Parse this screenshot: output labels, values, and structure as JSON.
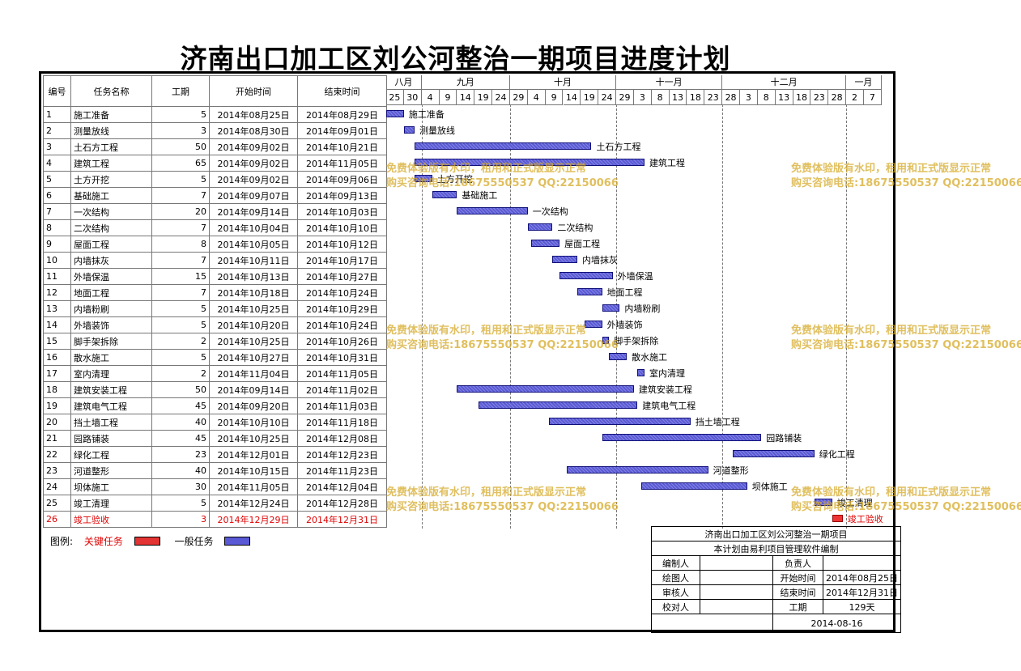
{
  "title": "济南出口加工区刘公河整治一期项目进度计划",
  "columns": [
    "编号",
    "任务名称",
    "工期",
    "开始时间",
    "结束时间"
  ],
  "months": [
    {
      "label": "八月",
      "days": [
        "25",
        "30"
      ]
    },
    {
      "label": "九月",
      "days": [
        "4",
        "9",
        "14",
        "19",
        "24"
      ]
    },
    {
      "label": "十月",
      "days": [
        "29",
        "4",
        "9",
        "14",
        "19",
        "24"
      ]
    },
    {
      "label": "十一月",
      "days": [
        "29",
        "3",
        "8",
        "13",
        "18",
        "23"
      ]
    },
    {
      "label": "十二月",
      "days": [
        "28",
        "3",
        "8",
        "13",
        "18",
        "23",
        "28"
      ]
    },
    {
      "label": "一月",
      "days": [
        "2",
        "7"
      ]
    }
  ],
  "colors": {
    "normal": "#5a5ad6",
    "critical": "#e33333",
    "critical_text": "#e00000",
    "watermark": "#d6aa28"
  },
  "chart_data": {
    "type": "gantt",
    "date_range": [
      "2014-08-25",
      "2015-01-11"
    ],
    "tasks": [
      {
        "id": "1",
        "name": "施工准备",
        "duration": "5",
        "start": "2014年08月25日",
        "end": "2014年08月29日",
        "s": "2014-08-25",
        "e": "2014-08-29",
        "critical": false
      },
      {
        "id": "2",
        "name": "测量放线",
        "duration": "3",
        "start": "2014年08月30日",
        "end": "2014年09月01日",
        "s": "2014-08-30",
        "e": "2014-09-01",
        "critical": false
      },
      {
        "id": "3",
        "name": "土石方工程",
        "duration": "50",
        "start": "2014年09月02日",
        "end": "2014年10月21日",
        "s": "2014-09-02",
        "e": "2014-10-21",
        "critical": false
      },
      {
        "id": "4",
        "name": "建筑工程",
        "duration": "65",
        "start": "2014年09月02日",
        "end": "2014年11月05日",
        "s": "2014-09-02",
        "e": "2014-11-05",
        "critical": false
      },
      {
        "id": "5",
        "name": "土方开挖",
        "duration": "5",
        "start": "2014年09月02日",
        "end": "2014年09月06日",
        "s": "2014-09-02",
        "e": "2014-09-06",
        "critical": false
      },
      {
        "id": "6",
        "name": "基础施工",
        "duration": "7",
        "start": "2014年09月07日",
        "end": "2014年09月13日",
        "s": "2014-09-07",
        "e": "2014-09-13",
        "critical": false
      },
      {
        "id": "7",
        "name": "一次结构",
        "duration": "20",
        "start": "2014年09月14日",
        "end": "2014年10月03日",
        "s": "2014-09-14",
        "e": "2014-10-03",
        "critical": false
      },
      {
        "id": "8",
        "name": "二次结构",
        "duration": "7",
        "start": "2014年10月04日",
        "end": "2014年10月10日",
        "s": "2014-10-04",
        "e": "2014-10-10",
        "critical": false
      },
      {
        "id": "9",
        "name": "屋面工程",
        "duration": "8",
        "start": "2014年10月05日",
        "end": "2014年10月12日",
        "s": "2014-10-05",
        "e": "2014-10-12",
        "critical": false
      },
      {
        "id": "10",
        "name": "内墙抹灰",
        "duration": "7",
        "start": "2014年10月11日",
        "end": "2014年10月17日",
        "s": "2014-10-11",
        "e": "2014-10-17",
        "critical": false
      },
      {
        "id": "11",
        "name": "外墙保温",
        "duration": "15",
        "start": "2014年10月13日",
        "end": "2014年10月27日",
        "s": "2014-10-13",
        "e": "2014-10-27",
        "critical": false
      },
      {
        "id": "12",
        "name": "地面工程",
        "duration": "7",
        "start": "2014年10月18日",
        "end": "2014年10月24日",
        "s": "2014-10-18",
        "e": "2014-10-24",
        "critical": false
      },
      {
        "id": "13",
        "name": "内墙粉刷",
        "duration": "5",
        "start": "2014年10月25日",
        "end": "2014年10月29日",
        "s": "2014-10-25",
        "e": "2014-10-29",
        "critical": false
      },
      {
        "id": "14",
        "name": "外墙装饰",
        "duration": "5",
        "start": "2014年10月20日",
        "end": "2014年10月24日",
        "s": "2014-10-20",
        "e": "2014-10-24",
        "critical": false
      },
      {
        "id": "15",
        "name": "脚手架拆除",
        "duration": "2",
        "start": "2014年10月25日",
        "end": "2014年10月26日",
        "s": "2014-10-25",
        "e": "2014-10-26",
        "critical": false
      },
      {
        "id": "16",
        "name": "散水施工",
        "duration": "5",
        "start": "2014年10月27日",
        "end": "2014年10月31日",
        "s": "2014-10-27",
        "e": "2014-10-31",
        "critical": false
      },
      {
        "id": "17",
        "name": "室内清理",
        "duration": "2",
        "start": "2014年11月04日",
        "end": "2014年11月05日",
        "s": "2014-11-04",
        "e": "2014-11-05",
        "critical": false
      },
      {
        "id": "18",
        "name": "建筑安装工程",
        "duration": "50",
        "start": "2014年09月14日",
        "end": "2014年11月02日",
        "s": "2014-09-14",
        "e": "2014-11-02",
        "critical": false
      },
      {
        "id": "19",
        "name": "建筑电气工程",
        "duration": "45",
        "start": "2014年09月20日",
        "end": "2014年11月03日",
        "s": "2014-09-20",
        "e": "2014-11-03",
        "critical": false
      },
      {
        "id": "20",
        "name": "挡土墙工程",
        "duration": "40",
        "start": "2014年10月10日",
        "end": "2014年11月18日",
        "s": "2014-10-10",
        "e": "2014-11-18",
        "critical": false
      },
      {
        "id": "21",
        "name": "园路铺装",
        "duration": "45",
        "start": "2014年10月25日",
        "end": "2014年12月08日",
        "s": "2014-10-25",
        "e": "2014-12-08",
        "critical": false
      },
      {
        "id": "22",
        "name": "绿化工程",
        "duration": "23",
        "start": "2014年12月01日",
        "end": "2014年12月23日",
        "s": "2014-12-01",
        "e": "2014-12-23",
        "critical": false
      },
      {
        "id": "23",
        "name": "河道整形",
        "duration": "40",
        "start": "2014年10月15日",
        "end": "2014年11月23日",
        "s": "2014-10-15",
        "e": "2014-11-23",
        "critical": false
      },
      {
        "id": "24",
        "name": "坝体施工",
        "duration": "30",
        "start": "2014年11月05日",
        "end": "2014年12月04日",
        "s": "2014-11-05",
        "e": "2014-12-04",
        "critical": false
      },
      {
        "id": "25",
        "name": "竣工清理",
        "duration": "5",
        "start": "2014年12月24日",
        "end": "2014年12月28日",
        "s": "2014-12-24",
        "e": "2014-12-28",
        "critical": false
      },
      {
        "id": "26",
        "name": "竣工验收",
        "duration": "3",
        "start": "2014年12月29日",
        "end": "2014年12月31日",
        "s": "2014-12-29",
        "e": "2014-12-31",
        "critical": true
      }
    ]
  },
  "legend": {
    "label": "图例:",
    "critical": "关键任务",
    "normal": "一般任务"
  },
  "info": {
    "project": "济南出口加工区刘公河整治一期项目",
    "note": "本计划由易利项目管理软件编制",
    "editor_label": "编制人",
    "leader_label": "负责人",
    "drawer_label": "绘图人",
    "start_label": "开始时间",
    "start_value": "2014年08月25日",
    "reviewer_label": "审核人",
    "end_label": "结束时间",
    "end_value": "2014年12月31日",
    "checker_label": "校对人",
    "duration_label": "工期",
    "duration_value": "129天",
    "date": "2014-08-16"
  },
  "watermark": {
    "line1": "免费体验版有水印，租用和正式版显示正常",
    "line2": "购买咨询电话:18675550537 QQ:22150066"
  }
}
